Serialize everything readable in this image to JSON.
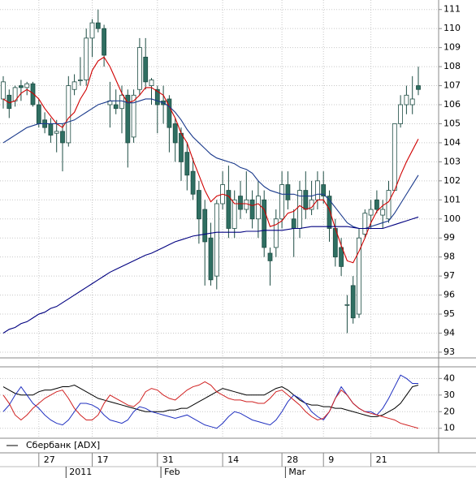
{
  "chart_data": [
    {
      "type": "candlestick",
      "categories": [
        null,
        null,
        null,
        null,
        null,
        null,
        "27",
        null,
        null,
        null,
        null,
        null,
        null,
        null,
        null,
        "17",
        null,
        null,
        null,
        null,
        null,
        null,
        null,
        null,
        null,
        null,
        "31",
        null,
        null,
        null,
        null,
        null,
        null,
        null,
        null,
        null,
        null,
        "14",
        null,
        null,
        null,
        null,
        null,
        null,
        null,
        null,
        null,
        "28",
        null,
        null,
        null,
        null,
        null,
        null,
        "9",
        null,
        null,
        null,
        null,
        null,
        null,
        null,
        "21",
        null,
        null,
        null,
        null,
        null,
        null,
        null,
        null
      ],
      "period_categories": [
        null,
        null,
        null,
        null,
        null,
        null,
        null,
        null,
        null,
        null,
        null,
        "2011",
        null,
        null,
        null,
        null,
        null,
        null,
        null,
        null,
        null,
        null,
        null,
        null,
        null,
        null,
        null,
        "Feb",
        null,
        null,
        null,
        null,
        null,
        null,
        null,
        null,
        null,
        null,
        null,
        null,
        null,
        null,
        null,
        null,
        null,
        null,
        null,
        null,
        "Mar",
        null,
        null,
        null,
        null,
        null,
        null,
        null,
        null,
        null,
        null,
        null,
        null,
        null,
        null,
        null,
        null,
        null,
        null,
        null,
        null,
        null,
        null,
        null
      ],
      "open": [
        106.3,
        106.5,
        106.2,
        107.0,
        106.9,
        107.1,
        106.0,
        105.2,
        105.0,
        104.5,
        104.6,
        104.0,
        106.8,
        107.3,
        107.3,
        109.5,
        110.3,
        110.0,
        106.0,
        106.0,
        105.8,
        106.5,
        104.3,
        106.8,
        108.5,
        107.0,
        106.8,
        106.2,
        106.3,
        105.0,
        104.5,
        103.5,
        102.5,
        101.5,
        100.5,
        99.0,
        97.0,
        100.8,
        101.5,
        99.5,
        101.2,
        100.5,
        101.0,
        100.0,
        101.0,
        98.2,
        98.5,
        100.0,
        101.8,
        100.0,
        99.5,
        101.5,
        100.5,
        101.0,
        101.8,
        101.2,
        99.5,
        98.5,
        95.5,
        96.5,
        95.0,
        99.2,
        100.2,
        101.0,
        100.2,
        100.0,
        101.5,
        105.0,
        106.0,
        106.0,
        107.0
      ],
      "high": [
        107.5,
        106.8,
        107.0,
        107.3,
        107.2,
        107.2,
        106.3,
        105.6,
        105.3,
        105.2,
        105.0,
        107.5,
        107.6,
        108.5,
        110.0,
        110.5,
        111.0,
        110.2,
        107.2,
        106.8,
        107.0,
        106.8,
        106.8,
        109.5,
        109.5,
        107.4,
        107.0,
        107.0,
        106.5,
        105.3,
        104.8,
        104.0,
        103.2,
        102.0,
        101.0,
        99.8,
        101.0,
        102.5,
        102.8,
        101.5,
        102.0,
        102.5,
        101.5,
        102.0,
        101.5,
        98.5,
        100.5,
        102.5,
        102.5,
        100.5,
        102.0,
        102.5,
        102.0,
        102.5,
        102.5,
        101.5,
        100.0,
        99.0,
        96.0,
        97.0,
        99.5,
        100.5,
        101.0,
        101.5,
        101.0,
        102.0,
        105.0,
        106.5,
        107.0,
        107.5,
        108.0
      ],
      "low": [
        105.8,
        105.3,
        105.9,
        106.2,
        106.5,
        105.9,
        104.8,
        104.5,
        104.0,
        103.5,
        102.5,
        103.8,
        106.5,
        107.0,
        107.0,
        108.5,
        109.8,
        108.0,
        104.8,
        105.5,
        104.5,
        102.7,
        104.0,
        106.5,
        106.8,
        106.0,
        104.5,
        105.0,
        103.5,
        103.0,
        102.0,
        101.5,
        101.0,
        98.7,
        96.5,
        96.5,
        96.3,
        100.5,
        99.0,
        99.0,
        100.0,
        100.3,
        99.5,
        99.0,
        98.0,
        96.5,
        98.0,
        99.5,
        100.5,
        98.0,
        99.0,
        100.0,
        100.2,
        100.5,
        100.8,
        98.8,
        97.5,
        97.0,
        94.0,
        94.5,
        94.8,
        99.0,
        99.5,
        100.3,
        99.5,
        99.8,
        101.5,
        104.8,
        105.5,
        105.5,
        106.5
      ],
      "close": [
        107.2,
        105.8,
        106.9,
        106.9,
        107.1,
        106.0,
        105.0,
        104.8,
        104.4,
        104.6,
        104.0,
        107.0,
        107.2,
        107.3,
        109.5,
        110.3,
        110.0,
        108.6,
        106.2,
        105.8,
        106.5,
        104.0,
        106.5,
        109.0,
        107.2,
        107.3,
        106.0,
        106.0,
        104.8,
        104.0,
        103.0,
        102.3,
        101.3,
        100.0,
        98.8,
        96.8,
        100.8,
        101.8,
        99.5,
        101.0,
        100.5,
        101.0,
        100.0,
        101.2,
        98.5,
        97.8,
        100.0,
        101.8,
        101.0,
        99.5,
        101.5,
        100.5,
        101.0,
        102.0,
        101.2,
        99.5,
        98.0,
        97.5,
        95.5,
        94.8,
        99.0,
        100.3,
        100.5,
        100.5,
        100.5,
        101.5,
        105.0,
        106.0,
        106.5,
        106.3,
        106.8
      ],
      "up_color": "#ffffff",
      "down_color": "#2f6f62",
      "overlays": [
        {
          "color": "#d00000",
          "values": [
            106.3,
            106.1,
            106.2,
            106.6,
            106.8,
            106.6,
            106.3,
            105.8,
            105.4,
            105.0,
            104.8,
            105.3,
            105.6,
            106.3,
            106.8,
            107.8,
            108.3,
            108.5,
            108.0,
            107.3,
            106.6,
            106.1,
            106.2,
            106.5,
            106.9,
            106.9,
            106.7,
            106.5,
            105.9,
            105.3,
            104.5,
            104.0,
            103.1,
            102.3,
            101.5,
            100.9,
            101.2,
            101.3,
            101.2,
            100.8,
            100.8,
            100.8,
            100.7,
            100.8,
            100.5,
            99.6,
            99.7,
            99.9,
            100.3,
            100.4,
            100.7,
            100.5,
            100.6,
            101.0,
            101.0,
            100.5,
            99.5,
            98.6,
            97.8,
            97.7,
            98.3,
            99.0,
            99.8,
            100.4,
            100.7,
            100.9,
            101.5,
            102.3,
            103.0,
            103.6,
            104.2
          ]
        },
        {
          "color": "#1a3a8c",
          "values": [
            104.0,
            104.2,
            104.4,
            104.6,
            104.8,
            104.9,
            105.0,
            105.0,
            105.0,
            105.0,
            105.0,
            105.1,
            105.2,
            105.4,
            105.6,
            105.8,
            106.0,
            106.1,
            106.2,
            106.2,
            106.2,
            106.1,
            106.1,
            106.2,
            106.3,
            106.3,
            106.2,
            106.1,
            105.9,
            105.6,
            105.2,
            104.7,
            104.3,
            104.0,
            103.7,
            103.4,
            103.2,
            103.1,
            103.0,
            102.9,
            102.7,
            102.6,
            102.4,
            102.0,
            101.7,
            101.5,
            101.4,
            101.3,
            101.3,
            101.3,
            101.2,
            101.2,
            101.2,
            101.3,
            101.3,
            101.0,
            100.6,
            100.2,
            99.8,
            99.6,
            99.5,
            99.5,
            99.6,
            99.7,
            99.8,
            99.9,
            100.3,
            100.8,
            101.3,
            101.8,
            102.3
          ]
        },
        {
          "color": "#000080",
          "values": [
            94.0,
            94.2,
            94.3,
            94.5,
            94.6,
            94.8,
            95.0,
            95.1,
            95.3,
            95.4,
            95.6,
            95.8,
            96.0,
            96.2,
            96.4,
            96.6,
            96.8,
            97.0,
            97.2,
            97.35,
            97.5,
            97.65,
            97.8,
            97.95,
            98.1,
            98.2,
            98.35,
            98.5,
            98.65,
            98.8,
            98.9,
            99.0,
            99.1,
            99.15,
            99.2,
            99.25,
            99.3,
            99.3,
            99.3,
            99.3,
            99.3,
            99.35,
            99.35,
            99.35,
            99.4,
            99.4,
            99.4,
            99.4,
            99.45,
            99.5,
            99.5,
            99.55,
            99.6,
            99.6,
            99.6,
            99.6,
            99.6,
            99.6,
            99.6,
            99.55,
            99.5,
            99.5,
            99.5,
            99.5,
            99.5,
            99.6,
            99.7,
            99.8,
            99.9,
            100.0,
            100.1
          ]
        }
      ],
      "ylim": [
        92.7,
        111.5
      ],
      "yticks": [
        93,
        94,
        95,
        96,
        97,
        98,
        99,
        100,
        101,
        102,
        103,
        104,
        105,
        106,
        107,
        108,
        109,
        110,
        111
      ],
      "grid": true
    },
    {
      "type": "line",
      "series": [
        {
          "name": "Сбербанк [ADX]",
          "color": "#000000",
          "values": [
            35,
            33,
            31,
            30,
            30,
            30,
            32,
            33,
            33,
            34,
            35,
            35,
            36,
            34,
            32,
            30,
            28,
            27,
            26,
            25,
            24,
            23,
            22,
            21,
            20,
            20,
            20,
            20,
            21,
            21,
            22,
            22,
            24,
            26,
            28,
            30,
            32,
            34,
            33,
            32,
            31,
            30,
            30,
            30,
            30,
            32,
            34,
            35,
            33,
            30,
            27,
            25,
            24,
            24,
            23,
            23,
            22,
            22,
            21,
            20,
            19,
            18,
            17,
            17,
            18,
            20,
            22,
            25,
            30,
            35,
            36
          ]
        },
        {
          "color": "#2030c0",
          "values": [
            20,
            24,
            30,
            35,
            30,
            25,
            22,
            18,
            15,
            13,
            12,
            15,
            20,
            25,
            25,
            24,
            22,
            18,
            15,
            14,
            13,
            15,
            20,
            23,
            22,
            20,
            19,
            18,
            17,
            16,
            17,
            18,
            16,
            14,
            12,
            11,
            10,
            13,
            17,
            20,
            19,
            17,
            15,
            14,
            13,
            12,
            15,
            20,
            26,
            30,
            28,
            25,
            20,
            17,
            15,
            20,
            28,
            35,
            30,
            25,
            22,
            20,
            20,
            18,
            22,
            28,
            35,
            42,
            40,
            37,
            37
          ]
        },
        {
          "color": "#d02020",
          "values": [
            30,
            25,
            18,
            15,
            18,
            22,
            25,
            28,
            30,
            32,
            33,
            28,
            22,
            18,
            15,
            15,
            18,
            25,
            30,
            28,
            26,
            24,
            23,
            26,
            32,
            34,
            33,
            30,
            28,
            27,
            30,
            33,
            35,
            36,
            38,
            36,
            32,
            30,
            28,
            27,
            27,
            26,
            26,
            25,
            25,
            28,
            32,
            33,
            30,
            27,
            24,
            20,
            17,
            15,
            16,
            20,
            28,
            33,
            30,
            25,
            22,
            20,
            19,
            18,
            17,
            16,
            15,
            13,
            12,
            11,
            10
          ]
        }
      ],
      "ylim": [
        4,
        47
      ],
      "yticks": [
        10,
        20,
        30,
        40
      ],
      "grid": true
    }
  ]
}
